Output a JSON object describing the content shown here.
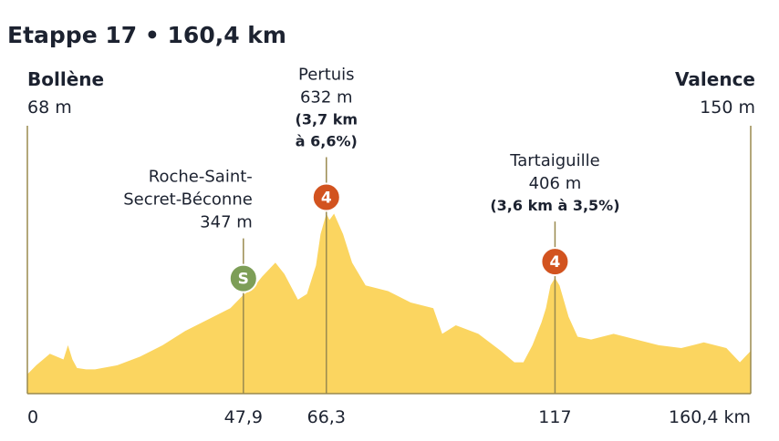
{
  "title": "Etappe 17 • 160,4 km",
  "colors": {
    "profile_fill": "#fbd560",
    "line": "#9a8a4f",
    "text": "#1c2230",
    "cat4": "#d2531f",
    "sprint": "#7d9e57"
  },
  "start": {
    "name": "Bollène",
    "altitude": "68 m"
  },
  "finish": {
    "name": "Valence",
    "altitude": "150 m"
  },
  "points": [
    {
      "km": 47.9,
      "km_label": "47,9",
      "lines": [
        "Roche-Saint-",
        "Secret-Béconne",
        "347 m"
      ],
      "detail": [],
      "marker": "S",
      "marker_color": "sprint"
    },
    {
      "km": 66.3,
      "km_label": "66,3",
      "lines": [
        "Pertuis",
        "632 m"
      ],
      "detail": [
        "(3,7 km",
        "à 6,6%)"
      ],
      "marker": "4",
      "marker_color": "cat4"
    },
    {
      "km": 117,
      "km_label": "117",
      "lines": [
        "Tartaiguille",
        "406 m"
      ],
      "detail": [
        "(3,6 km à 3,5%)"
      ],
      "marker": "4",
      "marker_color": "cat4"
    }
  ],
  "chart_data": {
    "type": "area",
    "title": "Etappe 17 • 160,4 km",
    "xlabel": "",
    "ylabel": "",
    "xlim": [
      0,
      160.4
    ],
    "ylim": [
      0,
      800
    ],
    "x_ticks": [
      {
        "value": 0,
        "label": "0"
      },
      {
        "value": 47.9,
        "label": "47,9"
      },
      {
        "value": 66.3,
        "label": "66,3"
      },
      {
        "value": 117,
        "label": "117"
      },
      {
        "value": 160.4,
        "label": "160,4 km"
      }
    ],
    "series": [
      {
        "x": [
          0,
          2,
          5,
          8,
          9,
          10,
          11,
          13,
          15,
          20,
          25,
          30,
          35,
          40,
          45,
          47.9,
          50,
          52,
          55,
          57,
          60,
          62,
          64,
          65,
          66.3,
          67,
          68,
          70,
          72,
          75,
          80,
          85,
          90,
          92,
          95,
          100,
          105,
          108,
          110,
          112,
          114,
          115,
          116,
          117,
          118,
          120,
          122,
          125,
          130,
          135,
          140,
          145,
          150,
          155,
          158,
          160.4
        ],
        "y": [
          68,
          100,
          140,
          120,
          170,
          120,
          90,
          85,
          85,
          100,
          130,
          170,
          220,
          260,
          300,
          347,
          370,
          410,
          460,
          420,
          330,
          350,
          450,
          560,
          632,
          610,
          632,
          560,
          460,
          380,
          360,
          320,
          300,
          210,
          240,
          210,
          150,
          110,
          110,
          170,
          250,
          300,
          380,
          406,
          380,
          270,
          200,
          190,
          210,
          190,
          170,
          160,
          180,
          160,
          110,
          150
        ]
      }
    ]
  }
}
